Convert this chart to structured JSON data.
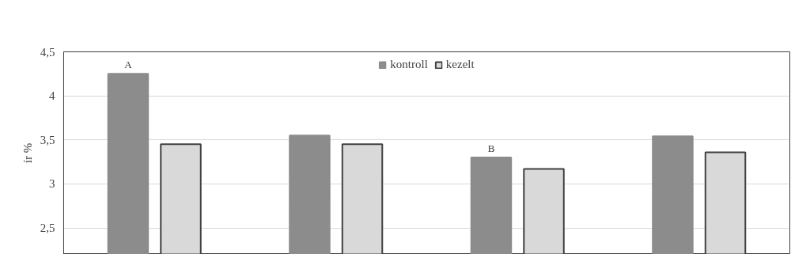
{
  "chart_data": {
    "type": "bar",
    "ylabel": "ír %",
    "categories": [
      null,
      null,
      null,
      null
    ],
    "series": [
      {
        "name": "kontroll",
        "color": "#8c8c8c",
        "values": [
          4.25,
          3.55,
          3.3,
          3.54
        ],
        "value_labels": [
          "A",
          null,
          "B",
          null
        ]
      },
      {
        "name": "kezelt",
        "color": "#d9d9d9",
        "values": [
          3.45,
          3.45,
          3.17,
          3.36
        ]
      }
    ],
    "ylim": [
      2.2,
      4.5
    ],
    "yticks": [
      {
        "value": 2.5,
        "label": "2,5"
      },
      3,
      {
        "value": 3.5,
        "label": "3,5"
      },
      4,
      {
        "value": 4.5,
        "label": "4,5"
      }
    ],
    "grid": "y",
    "legend": "top",
    "tick_labels": "y"
  }
}
